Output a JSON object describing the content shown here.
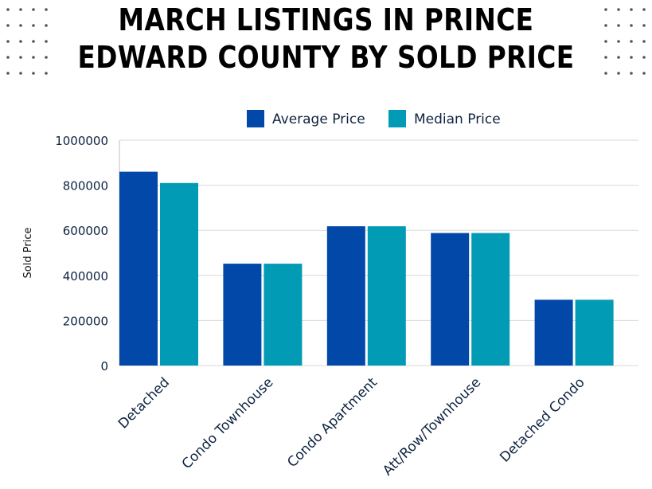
{
  "title_lines": [
    "MARCH LISTINGS IN PRINCE",
    "EDWARD COUNTY BY SOLD PRICE"
  ],
  "colors": {
    "average": "#0148a8",
    "median": "#029bb5",
    "axis_text": "#0f2340",
    "grid": "#d9d9d9",
    "dots": "#555555"
  },
  "chart_data": {
    "type": "bar",
    "title": "MARCH LISTINGS IN PRINCE EDWARD COUNTY BY SOLD PRICE",
    "xlabel": "",
    "ylabel": "Sold Price",
    "ylim": [
      0,
      1000000
    ],
    "yticks": [
      0,
      200000,
      400000,
      600000,
      800000,
      1000000
    ],
    "grid": true,
    "legend_position": "top-center",
    "categories": [
      "Detached",
      "Condo Townhouse",
      "Condo Apartment",
      "Att/Row/Townhouse",
      "Detached Condo"
    ],
    "series": [
      {
        "name": "Average Price",
        "values": [
          860000,
          452000,
          618000,
          588000,
          292000
        ]
      },
      {
        "name": "Median Price",
        "values": [
          810000,
          452000,
          618000,
          588000,
          292000
        ]
      }
    ]
  }
}
